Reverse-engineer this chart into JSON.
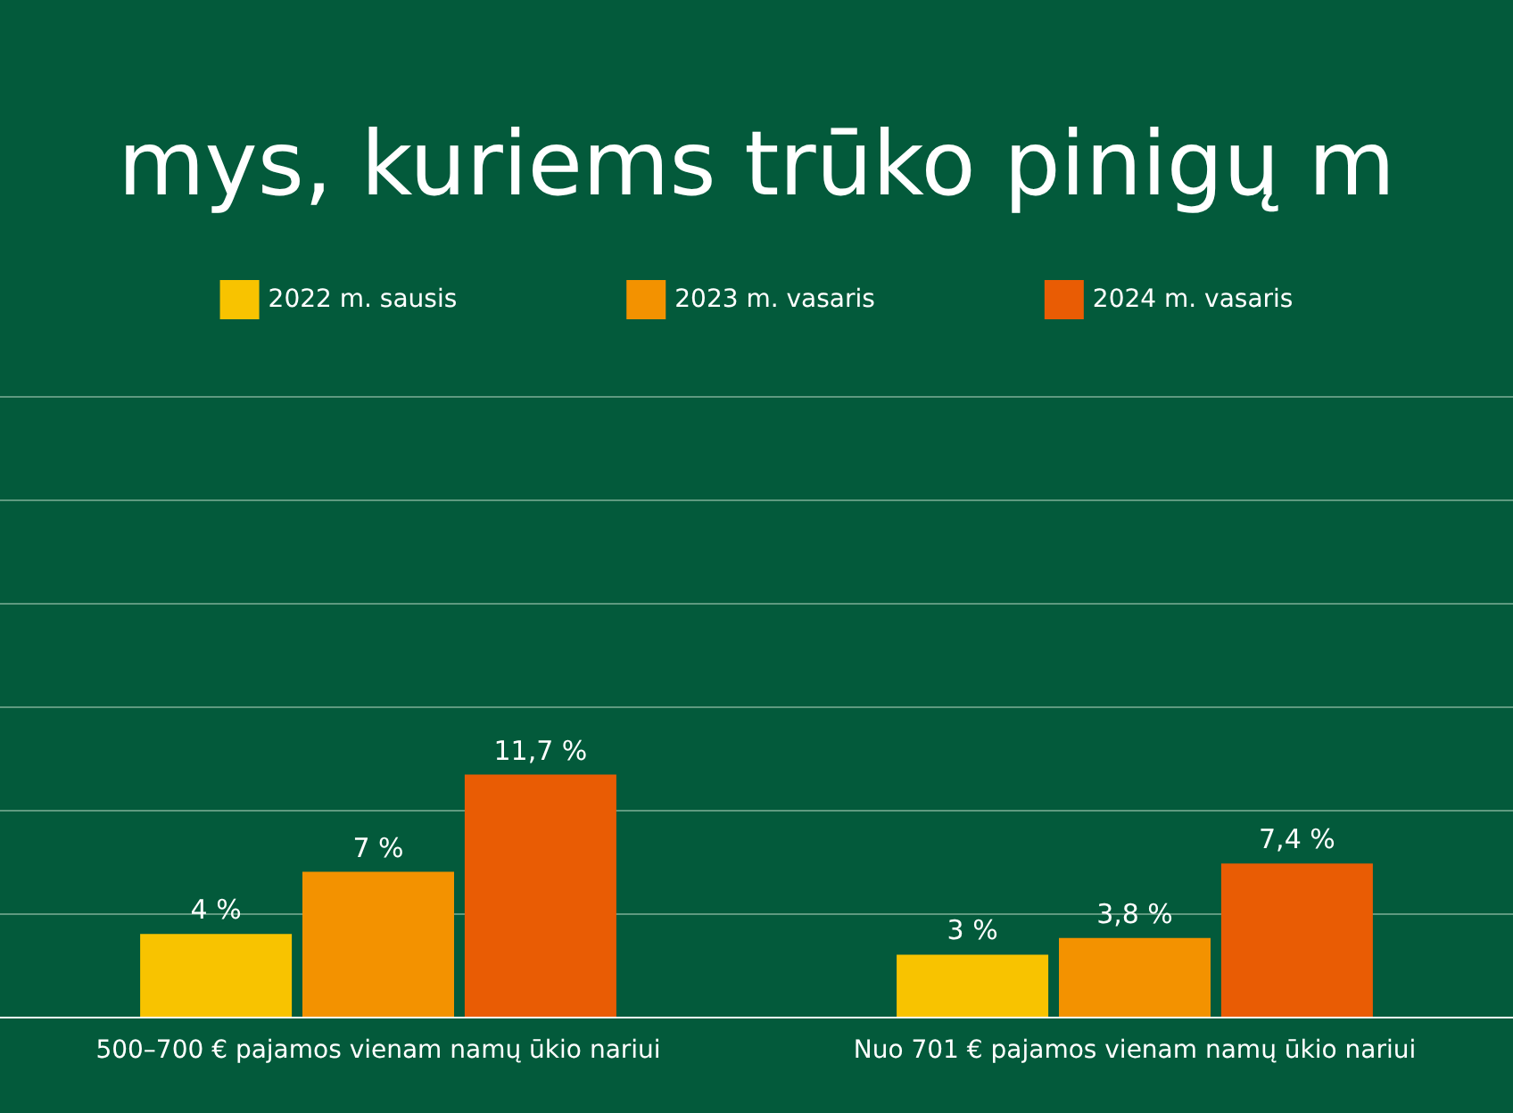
{
  "chart_data": {
    "type": "bar",
    "title": "mys, kuriems trūko pinigų m",
    "categories": [
      "500–700 € pajamos vienam namų ūkio nariui",
      "Nuo 701 € pajamos vienam namų ūkio nariui"
    ],
    "series": [
      {
        "name": "2022 m. sausis",
        "color": "#f8c300",
        "values": [
          4,
          3
        ],
        "value_labels": [
          "4 %",
          "3 %"
        ]
      },
      {
        "name": "2023 m. vasaris",
        "color": "#f39200",
        "values": [
          7,
          3.8
        ],
        "value_labels": [
          "7 %",
          "3,8 %"
        ]
      },
      {
        "name": "2024 m. vasaris",
        "color": "#e95c04",
        "values": [
          11.7,
          7.4
        ],
        "value_labels": [
          "11,7 %",
          "7,4 %"
        ]
      }
    ],
    "ylim": [
      0,
      30
    ],
    "yticks": [
      {
        "value": 0,
        "label": null
      },
      {
        "value": 5,
        "label": null
      },
      {
        "value": 10,
        "label": null
      },
      {
        "value": 15,
        "label": null
      },
      {
        "value": 20,
        "label": null
      },
      {
        "value": 25,
        "label": null
      },
      {
        "value": 30,
        "label": null
      }
    ],
    "grid": "y",
    "legend": "top",
    "tick_labels": "x"
  }
}
